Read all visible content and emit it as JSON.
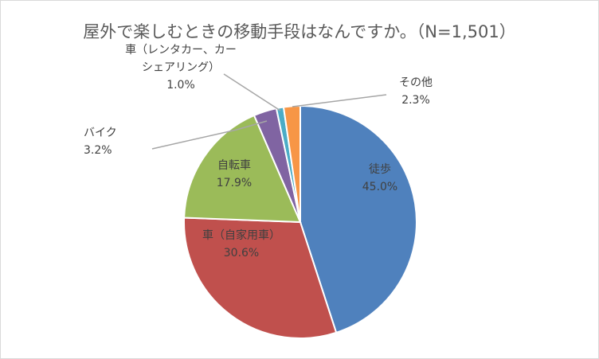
{
  "chart_data": {
    "type": "pie",
    "title": "屋外で楽しむときの移動手段はなんですか。（N=1,501）",
    "start_angle_deg": 0,
    "direction": "clockwise",
    "slices": [
      {
        "name": "徒歩",
        "value": 45.0,
        "label": "45.0%",
        "color": "#4f81bd",
        "label_inside": true,
        "label_color": "#404040"
      },
      {
        "name": "車（自家用車）",
        "value": 30.6,
        "label": "30.6%",
        "color": "#c0504d",
        "label_inside": true,
        "label_color": "#404040"
      },
      {
        "name": "自転車",
        "value": 17.9,
        "label": "17.9%",
        "color": "#9bbb59",
        "label_inside": true,
        "label_color": "#404040"
      },
      {
        "name": "バイク",
        "value": 3.2,
        "label": "3.2%",
        "color": "#8064a2",
        "label_inside": false,
        "label_color": "#404040"
      },
      {
        "name_lines": [
          "車（レンタカー、カー",
          "シェアリング）"
        ],
        "value": 1.0,
        "label": "1.0%",
        "color": "#4bacc6",
        "label_inside": false,
        "label_color": "#404040"
      },
      {
        "name": "その他",
        "value": 2.3,
        "label": "2.3%",
        "color": "#f79646",
        "label_inside": false,
        "label_color": "#404040"
      }
    ],
    "leader_color": "#a6a6a6",
    "slice_border": "#ffffff"
  }
}
